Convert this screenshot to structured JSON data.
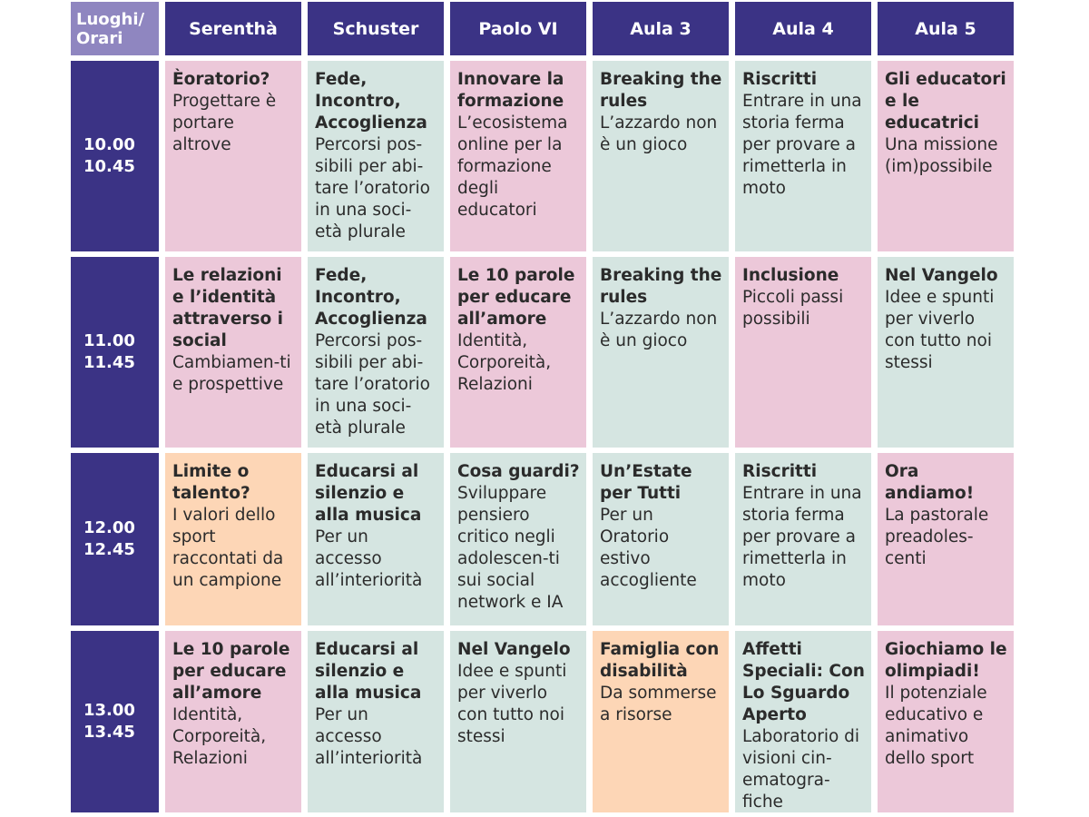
{
  "corner": {
    "line1": "Luoghi/",
    "line2": "Orari"
  },
  "rooms": [
    "Serenthà",
    "Schuster",
    "Paolo VI",
    "Aula 3",
    "Aula 4",
    "Aula 5"
  ],
  "colors": {
    "header": "#3b3385",
    "corner": "#8f86c0",
    "pink": "#ecc8d9",
    "mint": "#d5e5e1",
    "peach": "#fdd6b6"
  },
  "slots": [
    {
      "start": "10.00",
      "end": "10.45",
      "sessions": [
        {
          "title": "Èoratorio?",
          "desc": "Progettare è portare altrove",
          "color": "pink"
        },
        {
          "title": "Fede, Incontro, Accoglienza",
          "desc": "Percorsi pos-sibili per abi-tare l’oratorio in una soci-età plurale",
          "color": "mint"
        },
        {
          "title": "Innovare la formazione",
          "desc": "L’ecosistema online per la formazione degli educatori",
          "color": "pink"
        },
        {
          "title": "Breaking the rules",
          "desc": "L’azzardo non è un gioco",
          "color": "mint"
        },
        {
          "title": "Riscritti",
          "desc": "Entrare in una storia ferma per provare a rimetterla in moto",
          "color": "mint"
        },
        {
          "title": "Gli educatori e le educatrici",
          "desc": "Una missione (im)possibile",
          "color": "pink"
        }
      ]
    },
    {
      "start": "11.00",
      "end": "11.45",
      "sessions": [
        {
          "title": "Le relazioni e l’identità attraverso i social",
          "desc": "Cambiamen-ti e prospettive",
          "color": "pink"
        },
        {
          "title": "Fede, Incontro, Accoglienza",
          "desc": "Percorsi pos-sibili per abi-tare l’oratorio in una soci-età plurale",
          "color": "mint"
        },
        {
          "title": "Le 10 parole per educare all’amore",
          "desc": "Identità, Corporeità, Relazioni",
          "color": "pink"
        },
        {
          "title": "Breaking the rules",
          "desc": "L’azzardo non è un gioco",
          "color": "mint"
        },
        {
          "title": "Inclusione",
          "desc": "Piccoli passi possibili",
          "color": "pink"
        },
        {
          "title": "Nel Vangelo",
          "desc": "Idee e spunti per viverlo con tutto noi stessi",
          "color": "mint"
        }
      ]
    },
    {
      "start": "12.00",
      "end": "12.45",
      "sessions": [
        {
          "title": "Limite o talento?",
          "desc": "I valori dello sport raccontati da un campione",
          "color": "peach"
        },
        {
          "title": "Educarsi al silenzio e alla musica",
          "desc": "Per un accesso all’interiorità",
          "color": "mint"
        },
        {
          "title": "Cosa guardi?",
          "desc": "Sviluppare pensiero critico negli adolescen-ti sui social network e IA",
          "color": "mint"
        },
        {
          "title": "Un’Estate per Tutti",
          "desc": "Per un Oratorio estivo accogliente",
          "color": "mint"
        },
        {
          "title": "Riscritti",
          "desc": "Entrare in una storia ferma per provare a rimetterla in moto",
          "color": "mint"
        },
        {
          "title": "Ora andiamo!",
          "desc": "La pastorale preadoles-centi",
          "color": "pink"
        }
      ]
    },
    {
      "start": "13.00",
      "end": "13.45",
      "sessions": [
        {
          "title": "Le 10 parole per educare all’amore",
          "desc": "Identità, Corporeità, Relazioni",
          "color": "pink"
        },
        {
          "title": "Educarsi al silenzio e alla musica",
          "desc": "Per un accesso all’interiorità",
          "color": "mint"
        },
        {
          "title": "Nel Vangelo",
          "desc": "Idee e spunti per viverlo con tutto noi stessi",
          "color": "mint"
        },
        {
          "title": "Famiglia con disabilità",
          "desc": "Da sommerse a risorse",
          "color": "peach"
        },
        {
          "title": "Affetti Speciali: Con Lo Sguardo Aperto",
          "desc": "Laboratorio di visioni cin-ematogra-fiche",
          "color": "mint"
        },
        {
          "title": "Giochiamo le olimpiadi!",
          "desc": "Il potenziale educativo e animativo dello sport",
          "color": "pink"
        }
      ]
    }
  ]
}
